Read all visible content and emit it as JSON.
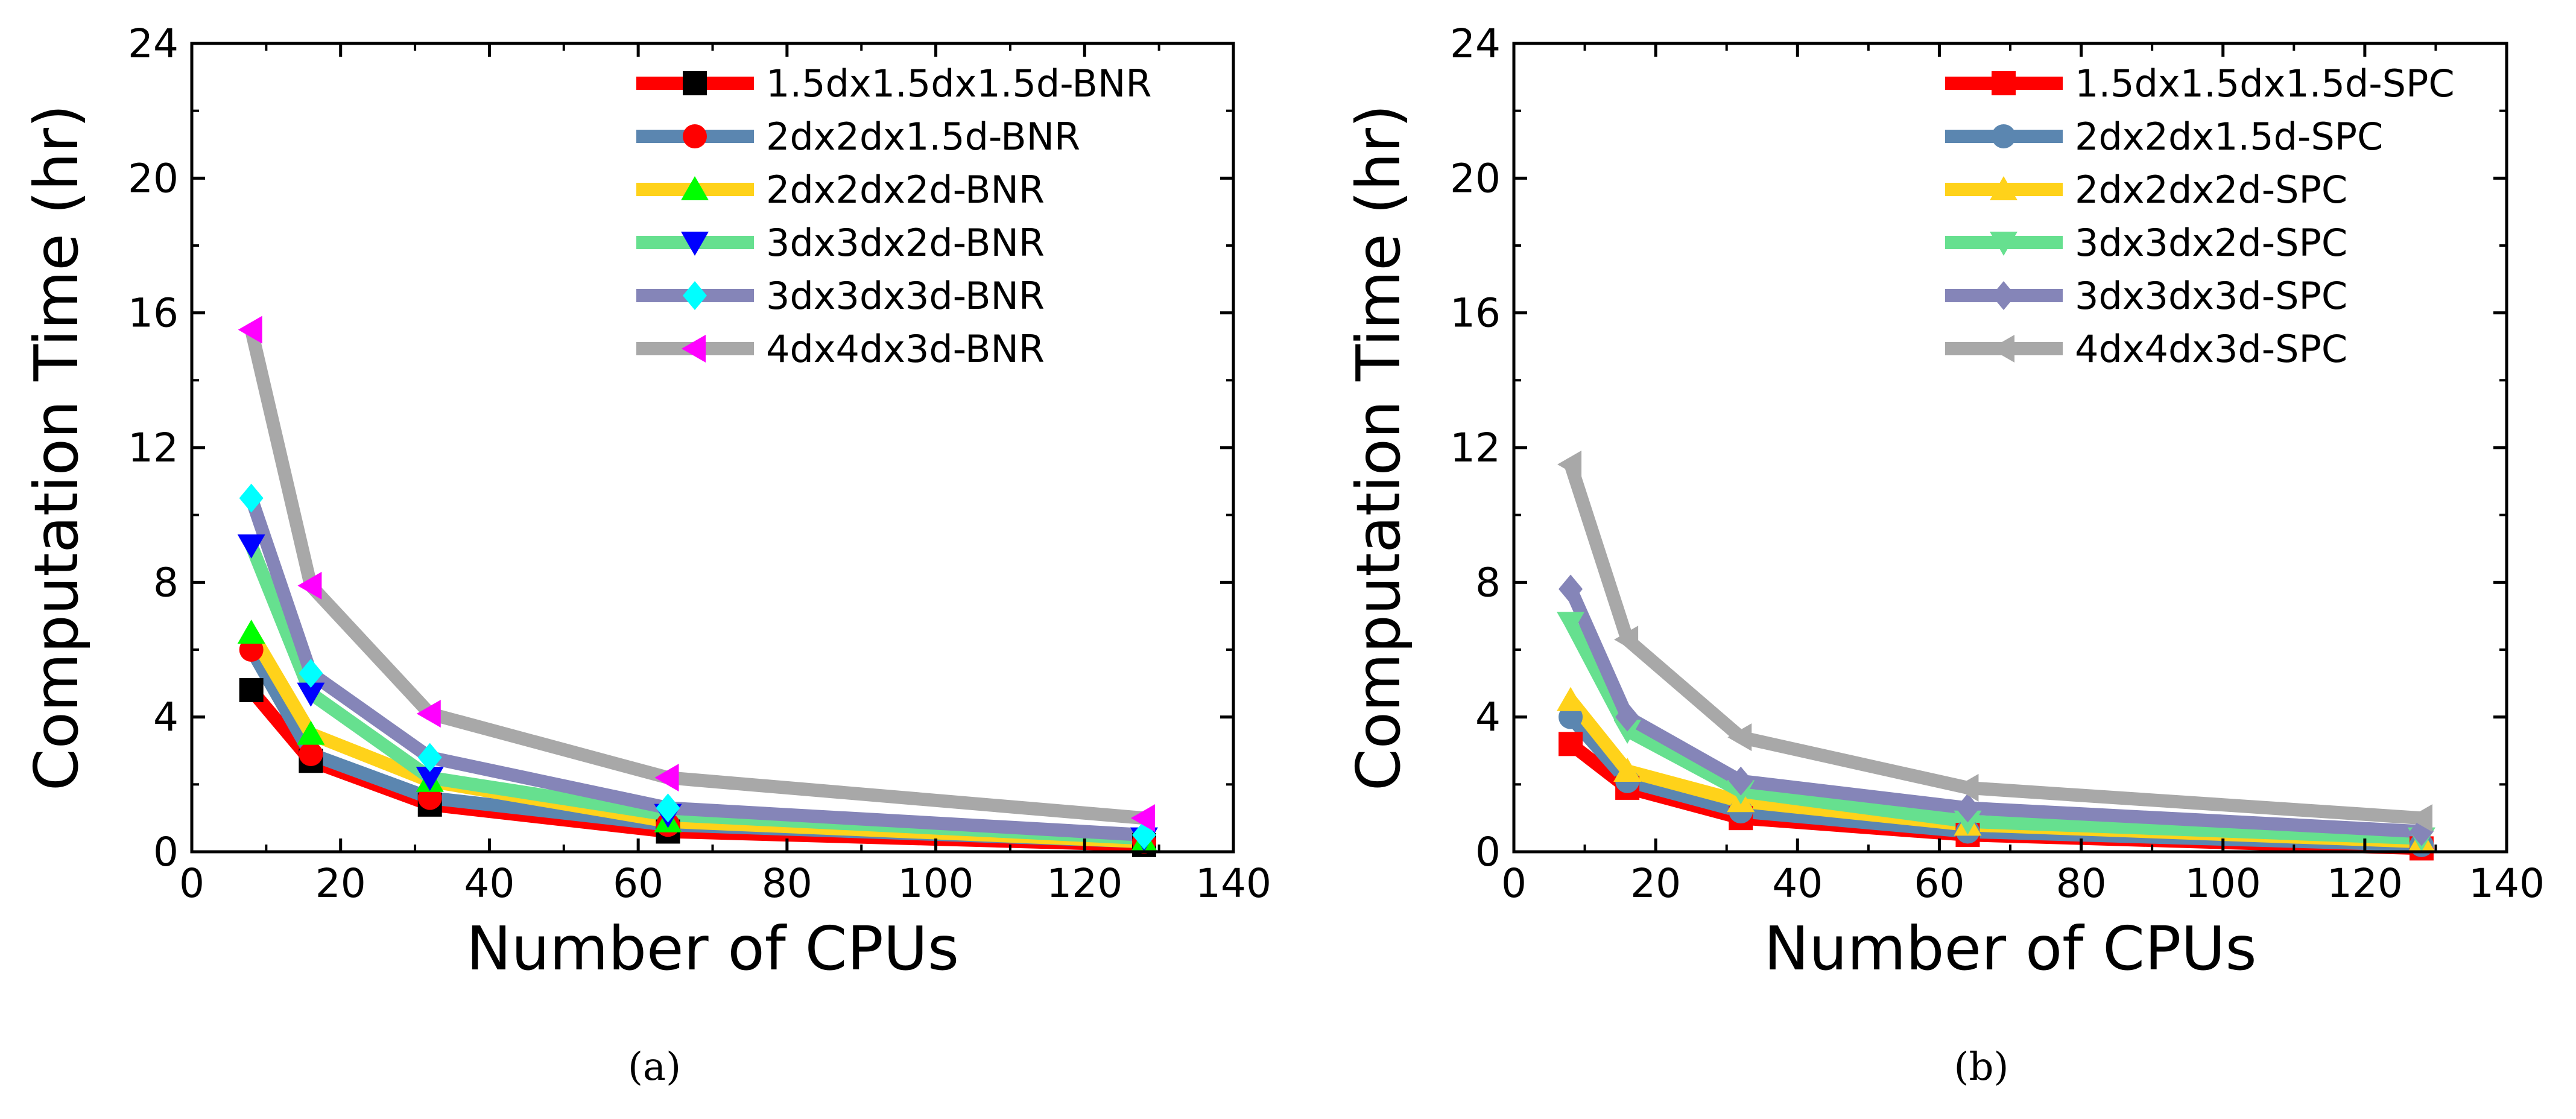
{
  "chart_data": [
    {
      "type": "line",
      "panel_label": "(a)",
      "title": "",
      "xlabel": "Number of CPUs",
      "ylabel": "Computation Time (hr)",
      "xlim": [
        0,
        140
      ],
      "ylim": [
        0,
        24
      ],
      "xticks": [
        0,
        20,
        40,
        60,
        80,
        100,
        120,
        140
      ],
      "yticks": [
        0,
        4,
        8,
        12,
        16,
        20,
        24
      ],
      "grid": false,
      "legend_position": "top-right",
      "x": [
        8,
        16,
        32,
        64,
        128
      ],
      "series": [
        {
          "name": "1.5dx1.5dx1.5d-BNR",
          "line_color": "#ff0000",
          "marker": "square",
          "marker_color": "#000000",
          "values": [
            4.8,
            2.7,
            1.4,
            0.6,
            0.2
          ]
        },
        {
          "name": "2dx2dx1.5d-BNR",
          "line_color": "#5b86b0",
          "marker": "circle",
          "marker_color": "#ff0000",
          "values": [
            6.0,
            2.9,
            1.6,
            0.8,
            0.3
          ]
        },
        {
          "name": "2dx2dx2d-BNR",
          "line_color": "#ffd21a",
          "marker": "triangle-up",
          "marker_color": "#00ff00",
          "values": [
            6.5,
            3.5,
            2.1,
            0.9,
            0.3
          ]
        },
        {
          "name": "3dx3dx2d-BNR",
          "line_color": "#66e08f",
          "marker": "triangle-down",
          "marker_color": "#0000ff",
          "values": [
            9.1,
            4.7,
            2.2,
            1.1,
            0.4
          ]
        },
        {
          "name": "3dx3dx3d-BNR",
          "line_color": "#8585b8",
          "marker": "diamond",
          "marker_color": "#00ffff",
          "values": [
            10.5,
            5.3,
            2.8,
            1.3,
            0.5
          ]
        },
        {
          "name": "4dx4dx3d-BNR",
          "line_color": "#a8a8a8",
          "marker": "triangle-left",
          "marker_color": "#ff00ff",
          "values": [
            15.5,
            7.9,
            4.1,
            2.2,
            1.0
          ]
        }
      ]
    },
    {
      "type": "line",
      "panel_label": "(b)",
      "title": "",
      "xlabel": "Number of CPUs",
      "ylabel": "Computation Time (hr)",
      "xlim": [
        0,
        140
      ],
      "ylim": [
        0,
        24
      ],
      "xticks": [
        0,
        20,
        40,
        60,
        80,
        100,
        120,
        140
      ],
      "yticks": [
        0,
        4,
        8,
        12,
        16,
        20,
        24
      ],
      "grid": false,
      "legend_position": "top-right",
      "x": [
        8,
        16,
        32,
        64,
        128
      ],
      "series": [
        {
          "name": "1.5dx1.5dx1.5d-SPC",
          "line_color": "#ff0000",
          "marker": "square",
          "marker_color": "#ff0000",
          "values": [
            3.2,
            1.9,
            1.0,
            0.5,
            0.1
          ]
        },
        {
          "name": "2dx2dx1.5d-SPC",
          "line_color": "#5b86b0",
          "marker": "circle",
          "marker_color": "#5b86b0",
          "values": [
            4.0,
            2.1,
            1.2,
            0.6,
            0.2
          ]
        },
        {
          "name": "2dx2dx2d-SPC",
          "line_color": "#ffd21a",
          "marker": "triangle-up",
          "marker_color": "#ffd21a",
          "values": [
            4.5,
            2.4,
            1.5,
            0.8,
            0.3
          ]
        },
        {
          "name": "3dx3dx2d-SPC",
          "line_color": "#66e08f",
          "marker": "triangle-down",
          "marker_color": "#66e08f",
          "values": [
            6.8,
            3.6,
            1.8,
            0.9,
            0.4
          ]
        },
        {
          "name": "3dx3dx3d-SPC",
          "line_color": "#8585b8",
          "marker": "diamond",
          "marker_color": "#8585b8",
          "values": [
            7.8,
            4.0,
            2.1,
            1.3,
            0.6
          ]
        },
        {
          "name": "4dx4dx3d-SPC",
          "line_color": "#a8a8a8",
          "marker": "triangle-left",
          "marker_color": "#a8a8a8",
          "values": [
            11.5,
            6.3,
            3.4,
            1.9,
            1.0
          ]
        }
      ]
    }
  ]
}
